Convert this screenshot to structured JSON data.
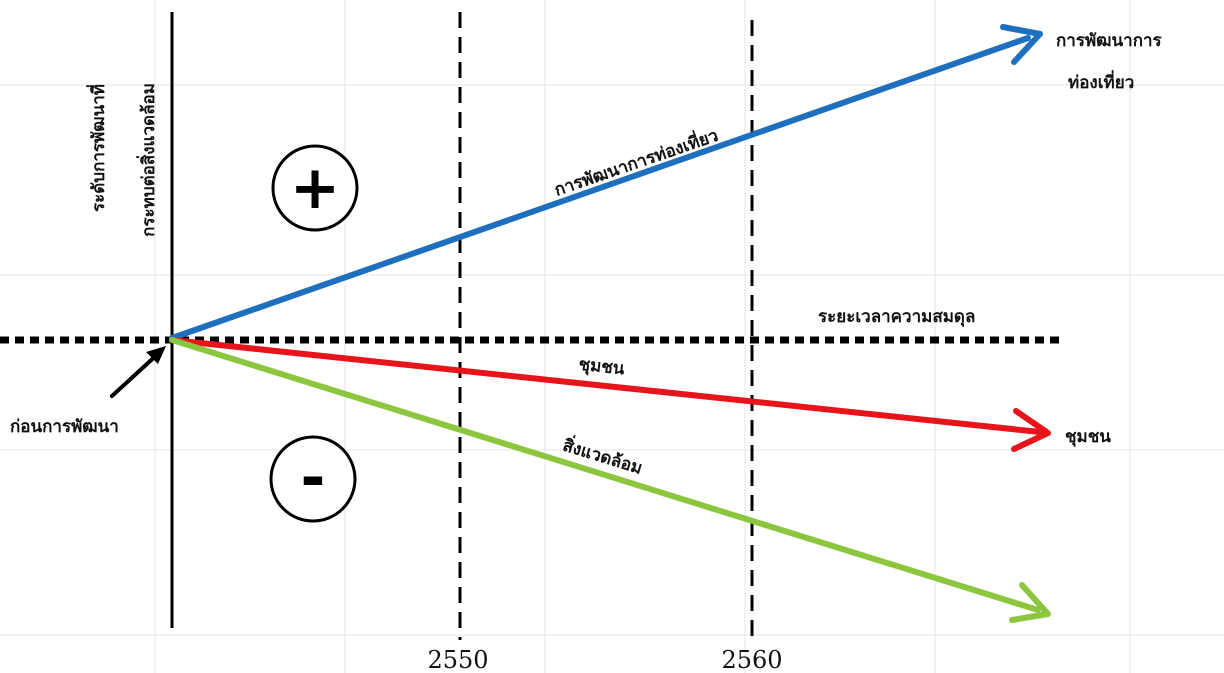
{
  "y_axis_label": {
    "line1": "ระดับการพัฒนาที่",
    "line2": "กระทบต่อสิ่งแวดล้อม"
  },
  "baseline_label": "ระยะเวลาความสมดุล",
  "origin_label": "ก่อนการพัฒนา",
  "positive_sign": "+",
  "negative_sign": "-",
  "years": [
    "2550",
    "2560"
  ],
  "lines": {
    "tourism": {
      "label": "การพัฒนาการท่องเที่ยว",
      "end_label_line1": "การพัฒนาการ",
      "end_label_line2": "ท่องเที่ยว",
      "color": "#1f6fbf"
    },
    "community": {
      "label": "ชุมชน",
      "end_label": "ชุมชน",
      "color": "#e8141b"
    },
    "environment": {
      "label": "สิ่งแวดล้อม",
      "color": "#8cc63f"
    }
  },
  "icons": {
    "tourism_arrowhead": "arrowhead-icon",
    "community_arrowhead": "arrowhead-icon",
    "environment_arrowhead": "arrowhead-icon",
    "origin_pointer": "pointer-arrow-icon"
  }
}
